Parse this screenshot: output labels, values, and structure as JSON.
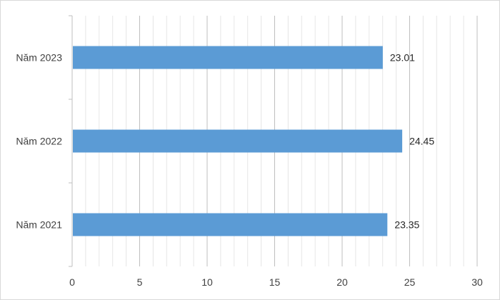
{
  "chart_data": {
    "type": "bar",
    "orientation": "horizontal",
    "categories": [
      "Năm 2023",
      "Năm 2022",
      "Năm 2021"
    ],
    "values": [
      23.01,
      24.45,
      23.35
    ],
    "value_labels": [
      "23.01",
      "24.45",
      "23.35"
    ],
    "xlim": [
      0,
      30
    ],
    "major_ticks": [
      0,
      5,
      10,
      15,
      20,
      25,
      30
    ],
    "tick_labels": [
      "0",
      "5",
      "10",
      "15",
      "20",
      "25",
      "30"
    ],
    "minor_step": 1,
    "grid": true,
    "legend": "none",
    "bar_color": "#5b9bd5",
    "major_grid_color": "#bfbfbf",
    "minor_grid_color": "#e6e6e6"
  }
}
